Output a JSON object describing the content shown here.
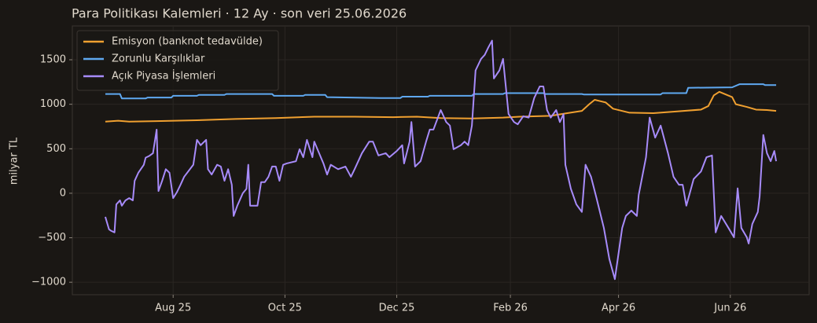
{
  "chart_data": {
    "type": "line",
    "title": "Para Politikası Kalemleri · 12 Ay · son veri 25.06.2026",
    "y_label": "milyar TL",
    "xlim": [
      -24,
      378
    ],
    "xticks": [
      {
        "value": 31,
        "label": "Aug 25"
      },
      {
        "value": 92,
        "label": "Oct 25"
      },
      {
        "value": 153,
        "label": "Dec 25"
      },
      {
        "value": 215,
        "label": "Feb 26"
      },
      {
        "value": 274,
        "label": "Apr 26"
      },
      {
        "value": 335,
        "label": "Jun 26"
      }
    ],
    "ylim": [
      -1140,
      1880
    ],
    "yticks": [
      {
        "value": -1000,
        "label": "−1000"
      },
      {
        "value": -500,
        "label": "−500"
      },
      0,
      500,
      1000,
      1500
    ],
    "grid": true,
    "legend": "upper-left",
    "series": [
      {
        "name": "Emisyon (banknot tedavülde)",
        "color": "#f0a030",
        "x": [
          -6,
          1,
          7,
          22,
          44,
          65,
          87,
          108,
          130,
          151,
          164,
          177,
          194,
          211,
          220,
          237,
          246,
          254,
          258,
          261,
          267,
          271,
          280,
          293,
          306,
          319,
          323,
          326,
          329,
          336,
          338,
          344,
          349,
          355,
          360
        ],
        "values": [
          805,
          815,
          805,
          810,
          820,
          835,
          845,
          860,
          860,
          855,
          860,
          845,
          840,
          850,
          860,
          870,
          900,
          925,
          1000,
          1050,
          1020,
          950,
          905,
          900,
          920,
          940,
          980,
          1100,
          1140,
          1080,
          1000,
          970,
          940,
          935,
          925
        ]
      },
      {
        "name": "Zorunlu Karşılıklar",
        "color": "#5fa8f0",
        "x": [
          -6,
          2,
          3,
          16,
          17,
          30,
          31,
          44,
          45,
          59,
          60,
          85,
          86,
          102,
          103,
          114,
          115,
          144,
          155,
          156,
          170,
          171,
          194,
          195,
          211,
          212,
          233,
          234,
          254,
          255,
          297,
          298,
          311,
          312,
          336,
          340,
          353,
          354,
          360
        ],
        "values": [
          1115,
          1115,
          1065,
          1065,
          1075,
          1075,
          1095,
          1095,
          1105,
          1105,
          1115,
          1115,
          1095,
          1095,
          1105,
          1105,
          1080,
          1070,
          1070,
          1085,
          1085,
          1095,
          1095,
          1115,
          1115,
          1125,
          1125,
          1115,
          1115,
          1110,
          1110,
          1125,
          1125,
          1185,
          1190,
          1225,
          1225,
          1215,
          1215
        ]
      },
      {
        "name": "Açık Piyasa İşlemleri",
        "color": "#a78bfa",
        "x": [
          -6,
          -4,
          -3,
          -1,
          0,
          2,
          3,
          5,
          7,
          9,
          10,
          12,
          15,
          16,
          18,
          20,
          22,
          23,
          25,
          27,
          29,
          31,
          33,
          35,
          37,
          42,
          44,
          46,
          49,
          50,
          52,
          55,
          57,
          59,
          61,
          63,
          64,
          66,
          69,
          71,
          72,
          73,
          77,
          79,
          81,
          83,
          85,
          87,
          89,
          91,
          93,
          98,
          100,
          102,
          104,
          107,
          108,
          113,
          115,
          117,
          121,
          125,
          128,
          130,
          134,
          138,
          140,
          143,
          147,
          149,
          153,
          156,
          157,
          160,
          161,
          163,
          166,
          169,
          171,
          173,
          177,
          180,
          182,
          184,
          188,
          190,
          192,
          194,
          196,
          199,
          201,
          203,
          205,
          206,
          209,
          211,
          214,
          217,
          219,
          222,
          225,
          228,
          231,
          233,
          235,
          237,
          240,
          242,
          244,
          245,
          248,
          251,
          254,
          256,
          259,
          262,
          266,
          269,
          272,
          276,
          278,
          281,
          284,
          285,
          289,
          291,
          294,
          297,
          301,
          304,
          307,
          309,
          311,
          315,
          319,
          322,
          325,
          327,
          330,
          334,
          337,
          339,
          341,
          344,
          345,
          347,
          350,
          351,
          353,
          355,
          357,
          359,
          360
        ],
        "values": [
          -265,
          -405,
          -420,
          -440,
          -125,
          -80,
          -140,
          -80,
          -55,
          -80,
          140,
          230,
          320,
          400,
          420,
          450,
          715,
          25,
          140,
          270,
          230,
          -55,
          10,
          95,
          185,
          320,
          600,
          540,
          600,
          270,
          210,
          320,
          300,
          140,
          270,
          95,
          -255,
          -140,
          0,
          50,
          320,
          -140,
          -140,
          125,
          125,
          185,
          300,
          300,
          140,
          320,
          335,
          360,
          495,
          405,
          600,
          405,
          580,
          335,
          210,
          320,
          270,
          300,
          185,
          270,
          450,
          580,
          580,
          425,
          450,
          405,
          475,
          540,
          335,
          580,
          800,
          300,
          360,
          580,
          715,
          715,
          935,
          800,
          760,
          495,
          540,
          580,
          540,
          760,
          1380,
          1510,
          1555,
          1640,
          1715,
          1290,
          1380,
          1510,
          890,
          800,
          775,
          865,
          850,
          1070,
          1200,
          1200,
          935,
          850,
          935,
          800,
          890,
          320,
          50,
          -125,
          -210,
          320,
          185,
          -55,
          -390,
          -740,
          -965,
          -390,
          -255,
          -195,
          -255,
          -20,
          405,
          850,
          625,
          760,
          450,
          185,
          95,
          95,
          -140,
          160,
          245,
          405,
          425,
          -440,
          -255,
          -390,
          -495,
          55,
          -390,
          -495,
          -565,
          -345,
          -210,
          -35,
          655,
          450,
          360,
          475,
          360
        ]
      }
    ]
  }
}
